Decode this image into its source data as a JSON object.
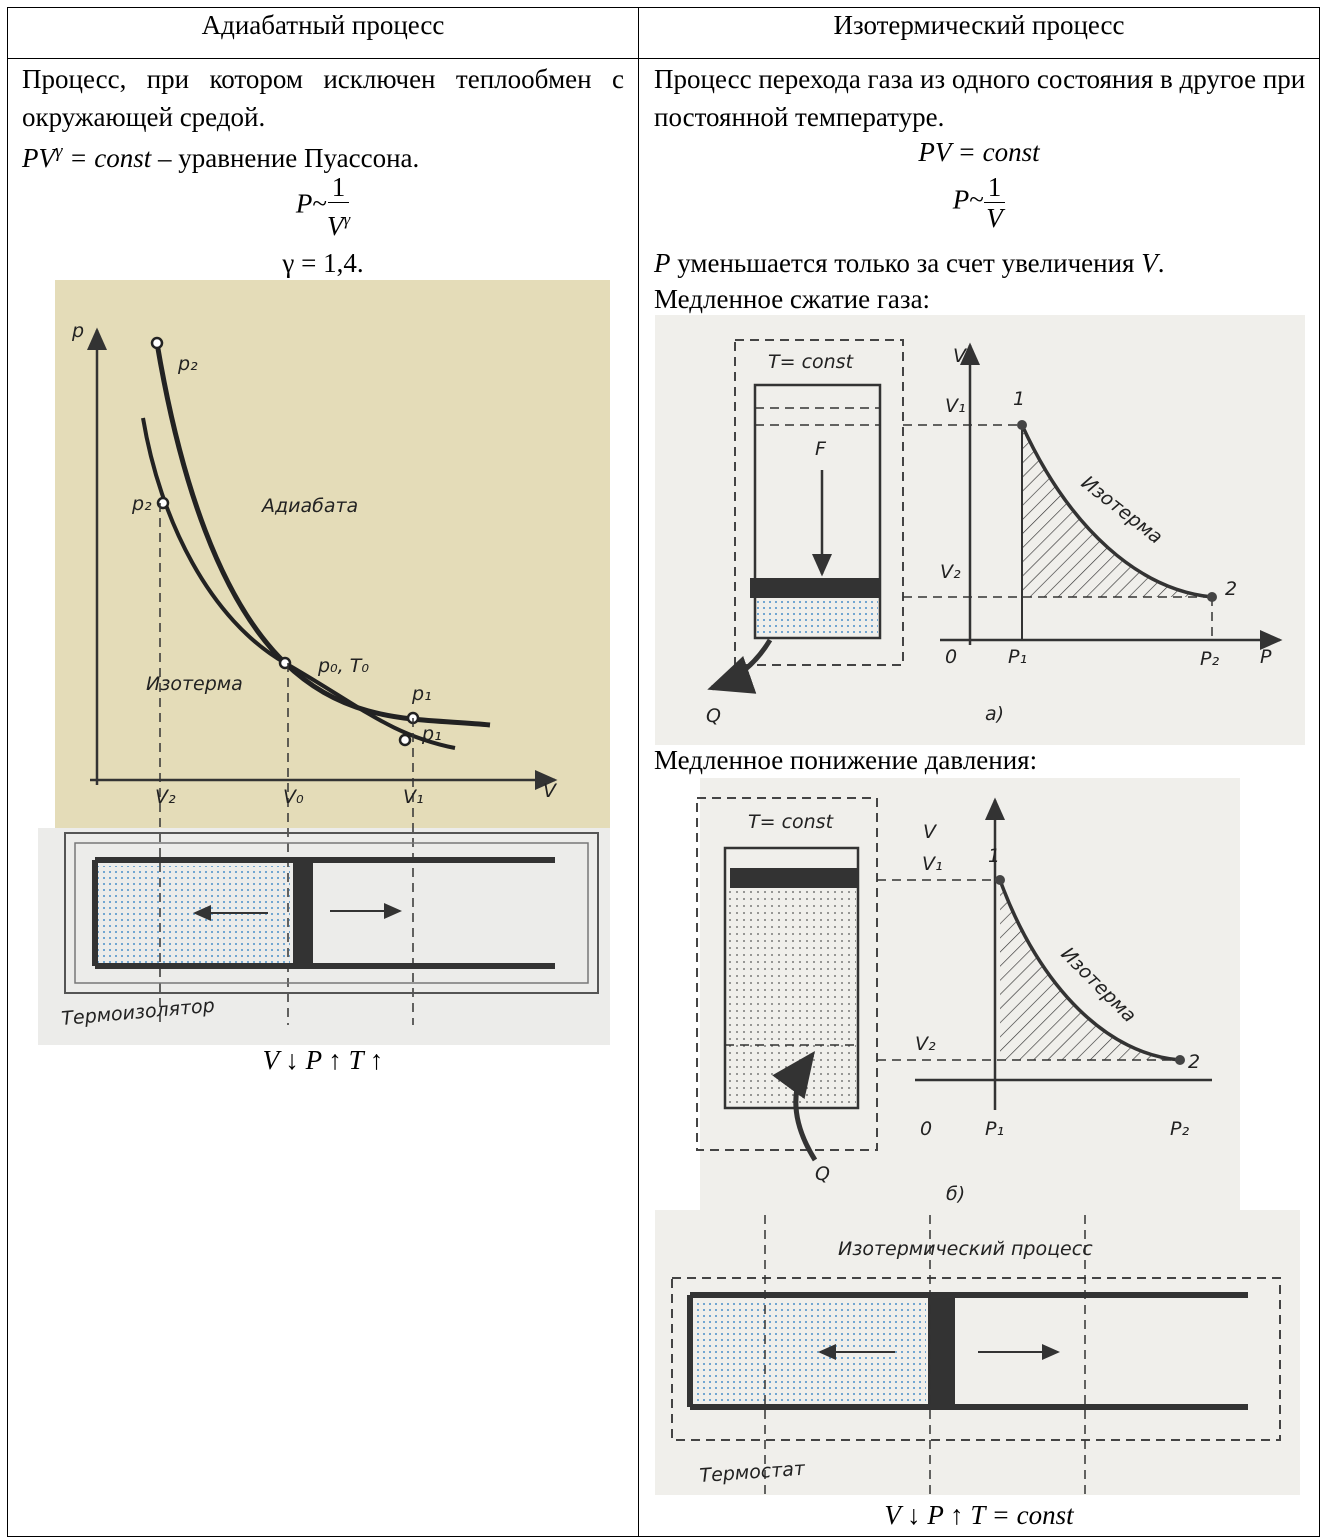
{
  "table": {
    "headers": [
      "Адиабатный процесс",
      "Изотермический процесс"
    ],
    "left": {
      "definition": "Процесс, при котором исключен теплообмен с окружающей средой.",
      "poisson": {
        "lhs": "PV",
        "exp": "γ",
        "rhs": "= const",
        "note": "– уравнение Пуассона."
      },
      "proportion": {
        "lhs": "P",
        "sim": "~",
        "num": "1",
        "den": "V",
        "exp": "γ"
      },
      "gamma": "γ = 1,4.",
      "figure_labels": [
        "p",
        "p₂",
        "p₂",
        "Адиабата",
        "p₀, T₀",
        "Изотерма",
        "p₁",
        "p₁",
        "V₂",
        "V₀",
        "V₁",
        "V",
        "Термоизолятор"
      ],
      "caption": "V ↓ P ↑ T ↑"
    },
    "right": {
      "definition": "Процесс перехода газа из одного состояния в другое при постоянной температуре.",
      "law": "PV = const",
      "proportion": {
        "lhs": "P",
        "sim": "~",
        "num": "1",
        "den": "V"
      },
      "note": {
        "p": "P",
        "text": "уменьшается только за счет увеличения",
        "v": "V",
        "end": "."
      },
      "compression": "Медленное сжатие газа:",
      "figure_a_labels": [
        "T= const",
        "F",
        "V",
        "V₁",
        "V₂",
        "0",
        "P₁",
        "P₂",
        "P",
        "1",
        "2",
        "Изотерма",
        "Q",
        "а)"
      ],
      "expansion": "Медленное понижение давления:",
      "figure_b_labels": [
        "T= const",
        "V",
        "V₁",
        "V₂",
        "0",
        "P₁",
        "P₂",
        "1",
        "2",
        "Изотерма",
        "Q",
        "б)"
      ],
      "figure_c_labels": [
        "Изотермический процесс",
        "Термостат"
      ],
      "caption": "V ↓ P ↑ T = const"
    }
  }
}
